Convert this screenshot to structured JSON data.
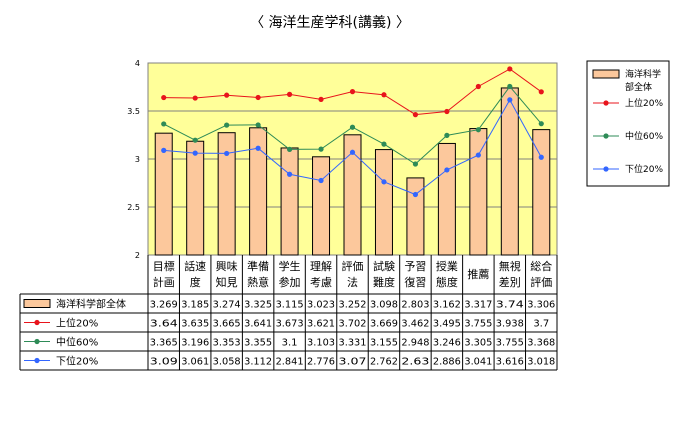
{
  "chart_data": {
    "type": "bar",
    "title": "〈 海洋生産学科(講義) 〉",
    "categories": [
      [
        "目標",
        "計画"
      ],
      [
        "話速",
        "度"
      ],
      [
        "興味",
        "知見"
      ],
      [
        "準備",
        "熱意"
      ],
      [
        "学生",
        "参加"
      ],
      [
        "理解",
        "考慮"
      ],
      [
        "評価",
        "法"
      ],
      [
        "試験",
        "難度"
      ],
      [
        "予習",
        "復習"
      ],
      [
        "授業",
        "態度"
      ],
      [
        "推薦"
      ],
      [
        "無視",
        "差別"
      ],
      [
        "総合",
        "評価"
      ]
    ],
    "ylim": [
      2,
      4
    ],
    "yticks": [
      "2",
      "2.5",
      "3",
      "3.5",
      "4"
    ],
    "yticks_values": [
      2,
      2.5,
      3,
      3.5,
      4
    ],
    "grid": true,
    "legend_position": "right",
    "plot_background": "#ffff99",
    "series": [
      {
        "name": "海洋科学部全体",
        "name_lines": [
          "海洋科学",
          "部全体"
        ],
        "kind": "bar",
        "color": "#fcc89c",
        "edge": "#000000",
        "values": [
          3.269,
          3.185,
          3.274,
          3.325,
          3.115,
          3.023,
          3.252,
          3.098,
          2.803,
          3.162,
          3.317,
          3.74,
          3.306
        ],
        "labels": [
          "3.269",
          "3.185",
          "3.274",
          "3.325",
          "3.115",
          "3.023",
          "3.252",
          "3.098",
          "2.803",
          "3.162",
          "3.317",
          "3.74",
          "3.306"
        ]
      },
      {
        "name": "上位20%",
        "kind": "line",
        "color": "#e8141c",
        "values": [
          3.64,
          3.635,
          3.665,
          3.641,
          3.673,
          3.621,
          3.702,
          3.669,
          3.462,
          3.495,
          3.755,
          3.938,
          3.7
        ],
        "labels": [
          "3.64",
          "3.635",
          "3.665",
          "3.641",
          "3.673",
          "3.621",
          "3.702",
          "3.669",
          "3.462",
          "3.495",
          "3.755",
          "3.938",
          "3.7"
        ]
      },
      {
        "name": "中位60%",
        "kind": "line",
        "color": "#2e8b57",
        "values": [
          3.365,
          3.196,
          3.353,
          3.355,
          3.1,
          3.103,
          3.331,
          3.155,
          2.948,
          3.246,
          3.305,
          3.755,
          3.368
        ],
        "labels": [
          "3.365",
          "3.196",
          "3.353",
          "3.355",
          "3.1",
          "3.103",
          "3.331",
          "3.155",
          "2.948",
          "3.246",
          "3.305",
          "3.755",
          "3.368"
        ]
      },
      {
        "name": "下位20%",
        "kind": "line",
        "color": "#3366ff",
        "values": [
          3.09,
          3.061,
          3.058,
          3.112,
          2.841,
          2.776,
          3.07,
          2.762,
          2.63,
          2.886,
          3.041,
          3.616,
          3.018
        ],
        "labels": [
          "3.09",
          "3.061",
          "3.058",
          "3.112",
          "2.841",
          "2.776",
          "3.07",
          "2.762",
          "2.63",
          "2.886",
          "3.041",
          "3.616",
          "3.018"
        ]
      }
    ]
  }
}
